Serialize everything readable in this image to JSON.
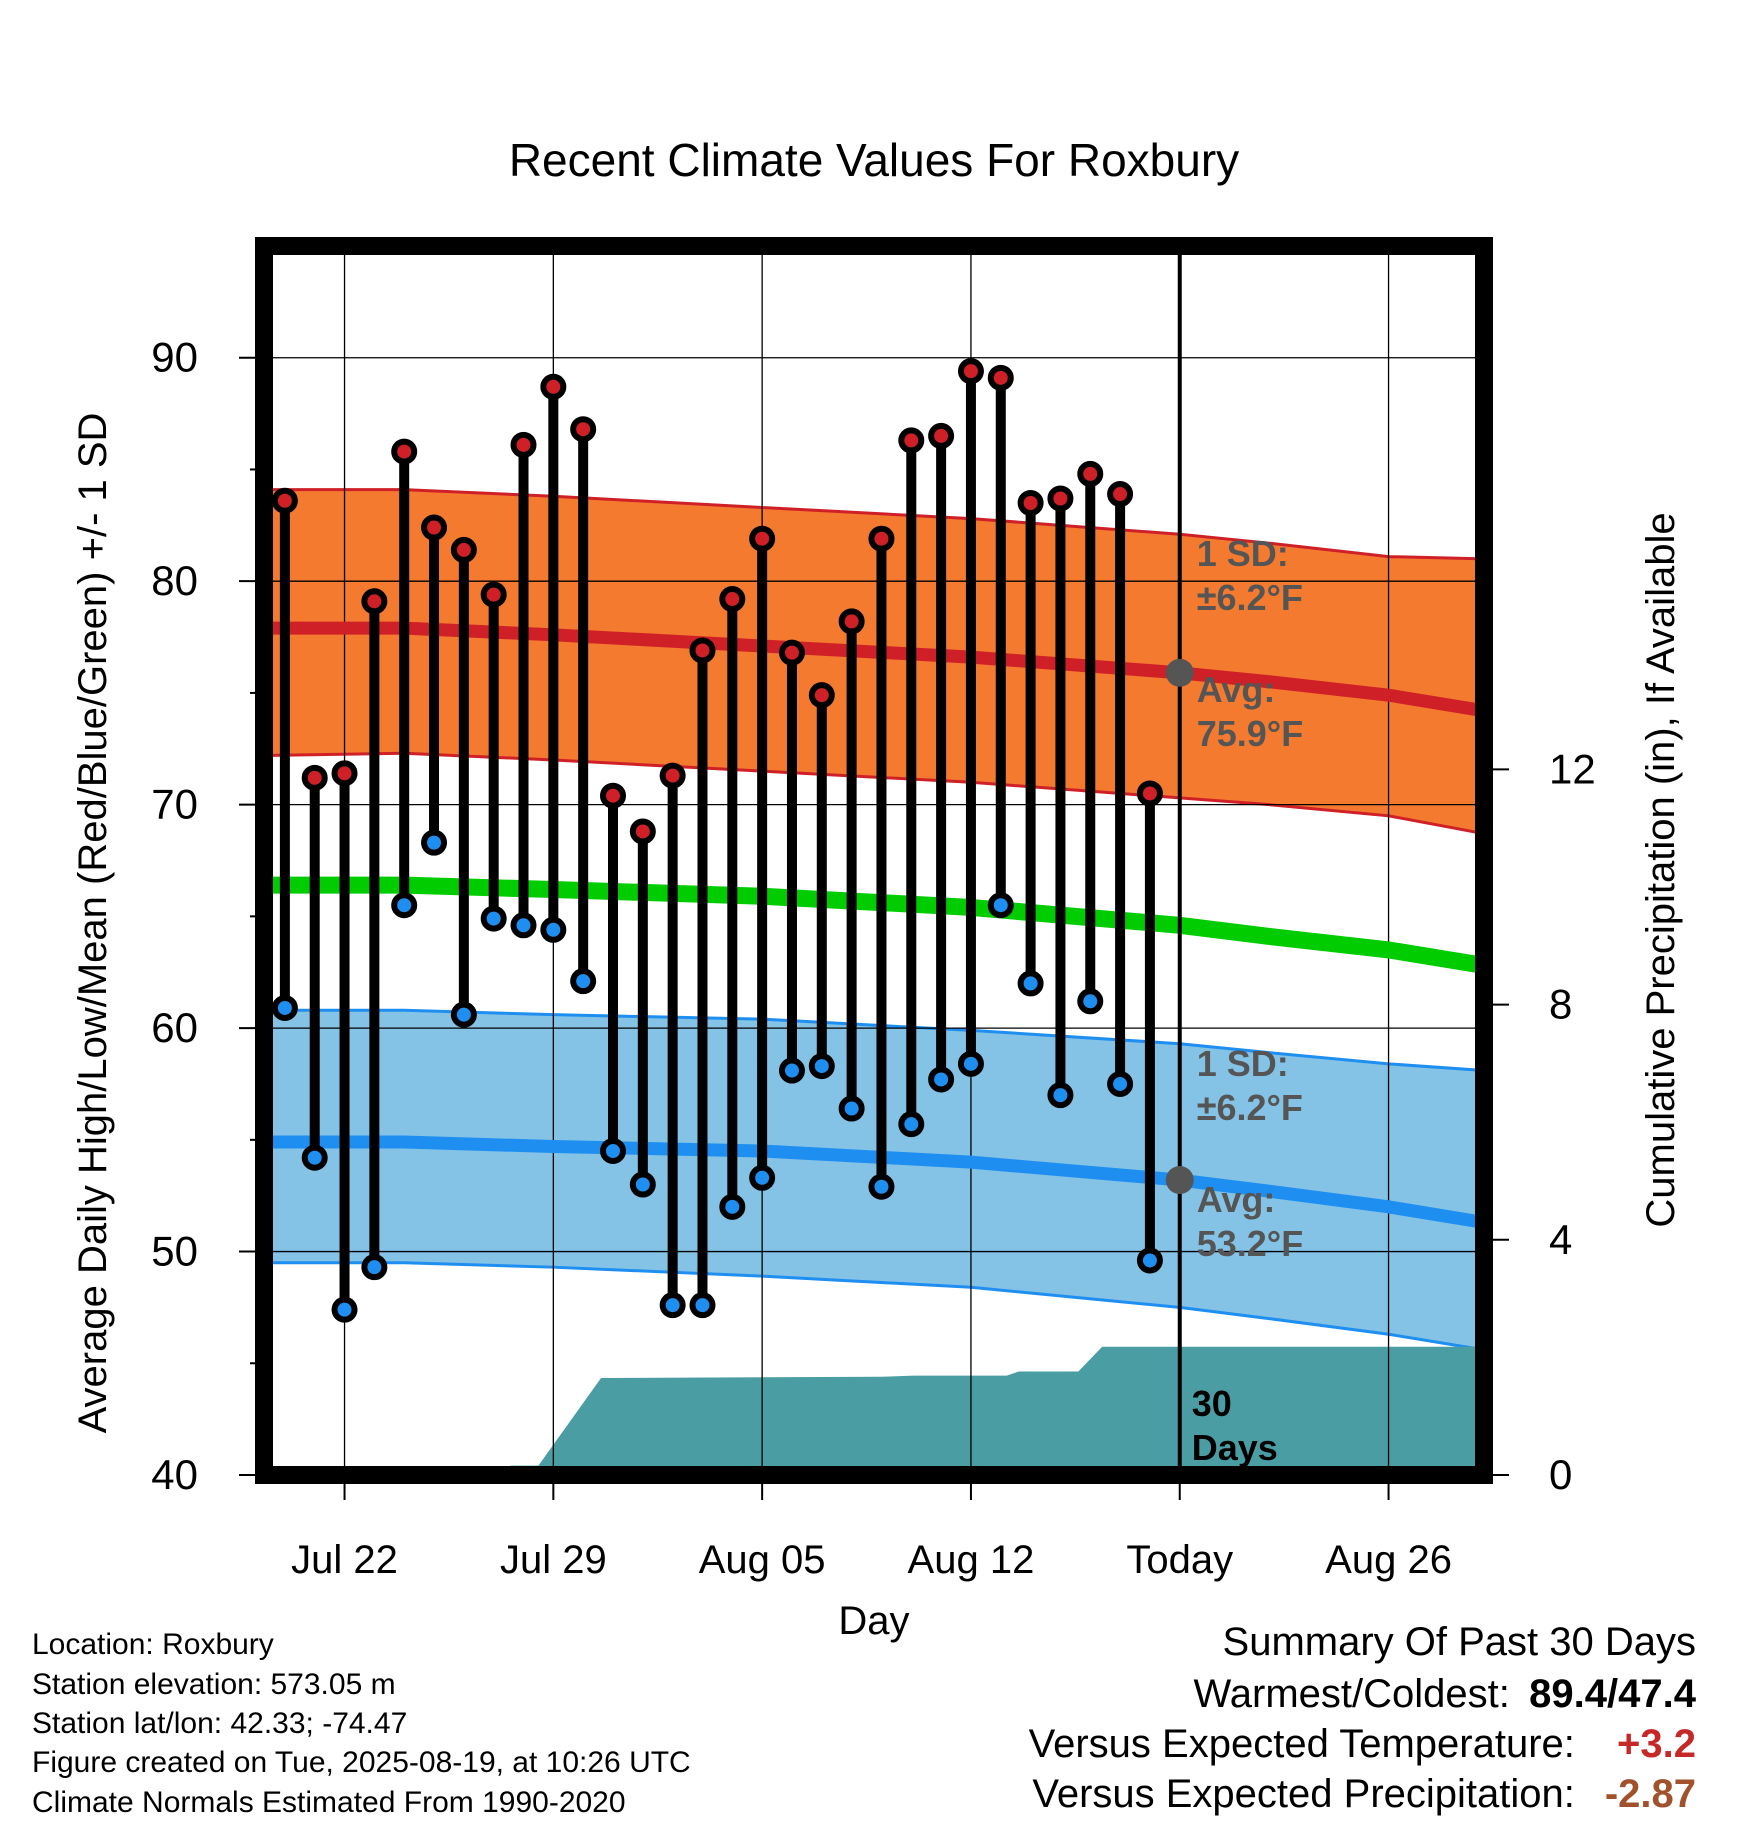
{
  "chart_data": {
    "type": "line",
    "title": "Recent Climate Values For Roxbury",
    "xlabel": "Day",
    "ylabel": "Average Daily High/Low/Mean (Red/Blue/Green) +/- 1 SD",
    "y2label": "Cumulative Precipitation (in), If Available",
    "x_ticks": [
      "Jul 22",
      "Jul 29",
      "Aug 05",
      "Aug 12",
      "Today",
      "Aug 26"
    ],
    "y_ticks": [
      "40",
      "50",
      "60",
      "70",
      "80",
      "90"
    ],
    "y2_ticks": [
      "0",
      "4",
      "8",
      "12"
    ],
    "ylim": [
      40,
      95
    ],
    "y2lim": [
      0,
      20.9
    ],
    "x_range_days": [
      -30.7,
      10.2
    ],
    "x_tick_days": [
      -28,
      -21,
      -14,
      -7,
      0,
      7
    ],
    "grid": true,
    "days": [
      -30,
      -29,
      -28,
      -27,
      -26,
      -25,
      -24,
      -23,
      -22,
      -21,
      -20,
      -19,
      -18,
      -17,
      -16,
      -15,
      -14,
      -13,
      -12,
      -11,
      -10,
      -9,
      -8,
      -7,
      -6,
      -5,
      -4,
      -3,
      -2,
      -1
    ],
    "daily_high": [
      83.6,
      71.2,
      71.4,
      79.1,
      85.8,
      82.4,
      81.4,
      79.4,
      86.1,
      88.7,
      86.8,
      70.4,
      68.8,
      71.3,
      76.9,
      79.2,
      81.9,
      76.8,
      74.9,
      78.2,
      81.9,
      86.3,
      86.5,
      89.4,
      89.1,
      83.5,
      83.7,
      84.8,
      83.9,
      70.5
    ],
    "daily_low": [
      60.9,
      54.2,
      47.4,
      49.3,
      65.5,
      68.3,
      60.6,
      64.9,
      64.6,
      64.4,
      62.1,
      54.5,
      53.0,
      47.6,
      47.6,
      52.0,
      53.3,
      58.1,
      58.3,
      56.4,
      52.9,
      55.7,
      57.7,
      58.4,
      65.5,
      62.0,
      57.0,
      61.2,
      57.5,
      49.6
    ],
    "normal_days": [
      -30.7,
      -26,
      -21,
      -14,
      -7,
      0,
      3,
      7,
      10.2
    ],
    "normal_high": [
      77.9,
      77.9,
      77.6,
      77.1,
      76.6,
      75.9,
      75.5,
      74.9,
      74.2
    ],
    "normal_high_sd_upper": [
      84.1,
      84.1,
      83.8,
      83.3,
      82.8,
      82.1,
      81.7,
      81.1,
      81.0
    ],
    "normal_high_sd_lower": [
      72.2,
      72.3,
      72.0,
      71.5,
      71.0,
      70.3,
      70.0,
      69.5,
      68.7
    ],
    "normal_mean": [
      66.4,
      66.4,
      66.2,
      65.9,
      65.4,
      64.6,
      64.1,
      63.5,
      62.8
    ],
    "normal_low": [
      54.9,
      54.9,
      54.7,
      54.5,
      54.0,
      53.2,
      52.7,
      52.0,
      51.3
    ],
    "normal_low_sd_upper": [
      60.8,
      60.8,
      60.6,
      60.4,
      59.9,
      59.3,
      58.9,
      58.4,
      58.1
    ],
    "normal_low_sd_lower": [
      49.5,
      49.5,
      49.3,
      48.9,
      48.4,
      47.5,
      47.0,
      46.3,
      45.6
    ],
    "precip_days": [
      -30.7,
      -23.9,
      -22.4,
      -21.5,
      -19.4,
      -10.0,
      -8.9,
      -5.8,
      -5.4,
      -3.4,
      -2.6,
      10.2
    ],
    "precip_cum": [
      0,
      0,
      0.16,
      0.16,
      1.65,
      1.67,
      1.69,
      1.69,
      1.76,
      1.76,
      2.18,
      2.18
    ],
    "annotations": {
      "high_sd": "1 SD:",
      "high_sd_value": "±6.2°F",
      "high_avg": "Avg:",
      "high_avg_value": "75.9°F",
      "low_sd": "1 SD:",
      "low_sd_value": "±6.2°F",
      "low_avg": "Avg:",
      "low_avg_value": "53.2°F",
      "days_line1": "30",
      "days_line2": "Days"
    },
    "colors": {
      "high": "#cf2027",
      "high_band": "#f47a30",
      "mean": "#00cc00",
      "low": "#1e8ff0",
      "low_band": "#84c3e6",
      "precip": "#4a9ea3",
      "annotation": "#555555"
    }
  },
  "meta": {
    "location": "Location: Roxbury",
    "elevation": "Station elevation: 573.05 m",
    "latlon": "Station lat/lon: 42.33; -74.47",
    "created": "Figure created on Tue, 2025-08-19, at 10:26 UTC",
    "normals": "Climate Normals Estimated From 1990-2020"
  },
  "summary": {
    "title": "Summary Of Past 30 Days",
    "warm_cold_label": "Warmest/Coldest:",
    "warm_cold_value": "89.4/47.4",
    "temp_label": "Versus Expected Temperature:",
    "temp_value": "+3.2",
    "temp_color": "#c62828",
    "precip_label": "Versus Expected Precipitation:",
    "precip_value": "-2.87",
    "precip_color": "#a0522d"
  }
}
